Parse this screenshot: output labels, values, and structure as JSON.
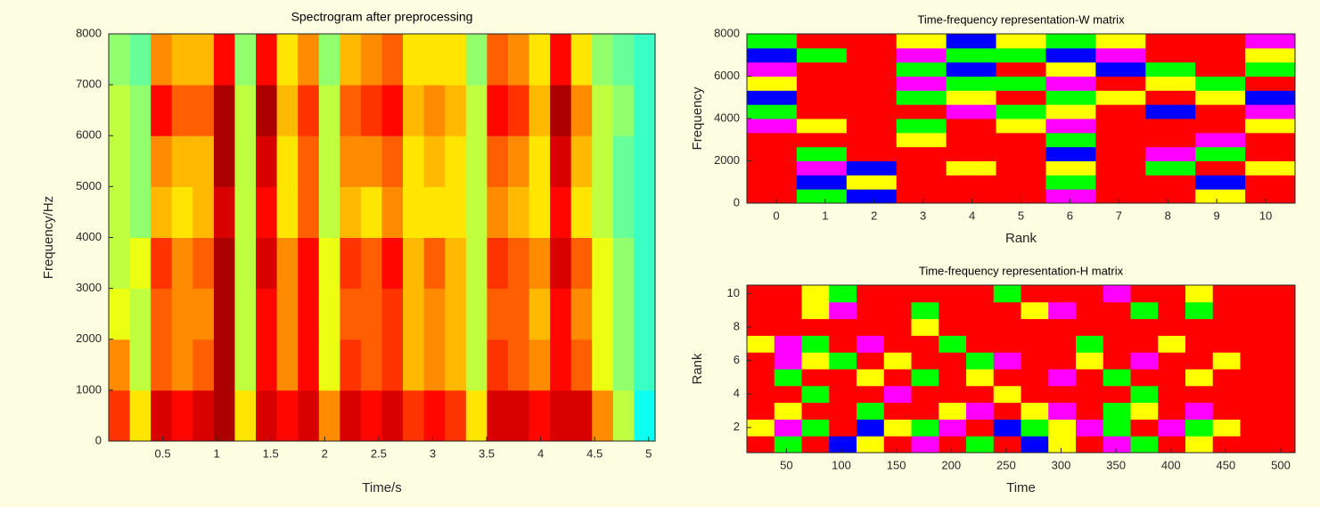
{
  "chart_data": [
    {
      "type": "heatmap",
      "title": "Spectrogram after preprocessing",
      "x_label": "Time/s",
      "y_label": "Frequency/Hz",
      "xlim": [
        0,
        5.06
      ],
      "ylim": [
        0,
        8000
      ],
      "xticks": [
        0.5,
        1,
        1.5,
        2,
        2.5,
        3,
        3.5,
        4,
        4.5,
        5
      ],
      "yticks": [
        0,
        1000,
        2000,
        3000,
        4000,
        5000,
        6000,
        7000,
        8000
      ],
      "colormap": [
        "#00007f",
        "#0000ff",
        "#00ffff",
        "#7fff7f",
        "#ffff00",
        "#ff7f00",
        "#ff0000",
        "#7f0000"
      ],
      "values": [
        [
          0.8,
          0.6,
          0.9,
          0.85,
          0.9,
          0.95,
          0.6,
          0.9,
          0.85,
          0.9,
          0.7,
          0.9,
          0.85,
          0.9,
          0.8,
          0.85,
          0.8,
          0.6,
          0.9,
          0.9,
          0.85,
          0.9,
          0.9,
          0.7,
          0.5,
          0.3
        ],
        [
          0.7,
          0.5,
          0.75,
          0.7,
          0.75,
          0.95,
          0.5,
          0.85,
          0.7,
          0.85,
          0.55,
          0.8,
          0.75,
          0.8,
          0.65,
          0.7,
          0.65,
          0.5,
          0.8,
          0.75,
          0.7,
          0.85,
          0.75,
          0.55,
          0.45,
          0.35
        ],
        [
          0.55,
          0.5,
          0.75,
          0.7,
          0.7,
          0.95,
          0.5,
          0.85,
          0.7,
          0.85,
          0.55,
          0.75,
          0.75,
          0.8,
          0.65,
          0.7,
          0.65,
          0.5,
          0.75,
          0.75,
          0.65,
          0.85,
          0.7,
          0.55,
          0.45,
          0.35
        ],
        [
          0.5,
          0.55,
          0.8,
          0.7,
          0.75,
          0.95,
          0.5,
          0.9,
          0.7,
          0.85,
          0.55,
          0.8,
          0.75,
          0.85,
          0.65,
          0.75,
          0.65,
          0.5,
          0.8,
          0.75,
          0.7,
          0.9,
          0.75,
          0.55,
          0.45,
          0.35
        ],
        [
          0.5,
          0.45,
          0.65,
          0.6,
          0.65,
          0.9,
          0.5,
          0.85,
          0.6,
          0.75,
          0.5,
          0.65,
          0.6,
          0.7,
          0.6,
          0.6,
          0.6,
          0.5,
          0.7,
          0.65,
          0.6,
          0.85,
          0.6,
          0.5,
          0.4,
          0.35
        ],
        [
          0.5,
          0.45,
          0.7,
          0.65,
          0.65,
          0.95,
          0.5,
          0.9,
          0.6,
          0.75,
          0.5,
          0.7,
          0.7,
          0.75,
          0.6,
          0.65,
          0.6,
          0.5,
          0.75,
          0.7,
          0.6,
          0.9,
          0.65,
          0.5,
          0.4,
          0.35
        ],
        [
          0.5,
          0.45,
          0.85,
          0.75,
          0.75,
          0.95,
          0.5,
          0.95,
          0.65,
          0.8,
          0.5,
          0.75,
          0.8,
          0.85,
          0.65,
          0.7,
          0.65,
          0.5,
          0.85,
          0.8,
          0.65,
          0.95,
          0.7,
          0.5,
          0.45,
          0.35
        ],
        [
          0.45,
          0.4,
          0.7,
          0.65,
          0.65,
          0.85,
          0.45,
          0.85,
          0.6,
          0.7,
          0.45,
          0.65,
          0.7,
          0.75,
          0.6,
          0.6,
          0.6,
          0.45,
          0.75,
          0.7,
          0.6,
          0.85,
          0.6,
          0.45,
          0.4,
          0.35
        ]
      ]
    },
    {
      "type": "heatmap",
      "title": "Time-frequency representation-W matrix",
      "x_label": "Rank",
      "y_label": "Frequency",
      "xlim": [
        -0.6,
        10.6
      ],
      "ylim": [
        0,
        8000
      ],
      "xticks": [
        0,
        1,
        2,
        3,
        4,
        5,
        6,
        7,
        8,
        9,
        10
      ],
      "yticks": [
        0,
        2000,
        4000,
        6000,
        8000
      ],
      "colormap": [
        "#0000ff",
        "#ff00ff",
        "#00ff00",
        "#ffff00",
        "#ff0000"
      ],
      "values": [
        [
          1,
          0.5,
          0,
          1,
          1,
          1,
          0.25,
          1,
          1,
          0.75,
          1
        ],
        [
          1,
          0,
          0.75,
          1,
          1,
          1,
          0.5,
          1,
          1,
          0,
          1
        ],
        [
          1,
          0.25,
          0,
          1,
          0.75,
          1,
          0.75,
          1,
          0.5,
          1,
          0.75
        ],
        [
          1,
          0.5,
          1,
          1,
          1,
          1,
          0,
          1,
          0.25,
          0.5,
          1
        ],
        [
          1,
          1,
          1,
          0.75,
          1,
          1,
          0.5,
          1,
          1,
          0.25,
          1
        ],
        [
          0.25,
          0.75,
          1,
          0.5,
          1,
          0.75,
          0.25,
          1,
          1,
          1,
          0.75
        ],
        [
          0.5,
          1,
          1,
          1,
          0.25,
          0.5,
          0.75,
          1,
          0,
          1,
          0.25
        ],
        [
          0,
          1,
          1,
          0.5,
          0.75,
          1,
          0.5,
          0.75,
          1,
          0.75,
          0
        ],
        [
          0.75,
          1,
          1,
          0.25,
          0.5,
          0.5,
          0.25,
          1,
          0.75,
          0.5,
          1
        ],
        [
          0.25,
          1,
          1,
          0.5,
          0,
          1,
          0.75,
          0,
          0.5,
          1,
          0.5
        ],
        [
          0,
          0.5,
          1,
          0.25,
          0.5,
          0.5,
          0,
          0.25,
          1,
          1,
          0.75
        ],
        [
          0.5,
          1,
          1,
          0.75,
          0,
          0.75,
          0.5,
          0.75,
          1,
          1,
          0.25
        ]
      ]
    },
    {
      "type": "heatmap",
      "title": "Time-frequency representation-H matrix",
      "x_label": "Time",
      "y_label": "Rank",
      "xlim": [
        14,
        513
      ],
      "ylim": [
        0.5,
        10.5
      ],
      "xticks": [
        50,
        100,
        150,
        200,
        250,
        300,
        350,
        400,
        450,
        500
      ],
      "yticks": [
        2,
        4,
        6,
        8,
        10
      ],
      "colormap": [
        "#0000ff",
        "#ff00ff",
        "#00ff00",
        "#ffff00",
        "#ff0000"
      ],
      "values": [
        [
          1,
          0.5,
          1,
          0,
          0.75,
          1,
          0.25,
          1,
          0.5,
          1,
          0,
          0.75,
          1,
          0.25,
          0.5,
          1,
          0.75,
          1,
          1,
          1
        ],
        [
          0.75,
          0.25,
          0.5,
          1,
          0,
          0.75,
          0.5,
          0.25,
          1,
          0,
          0.5,
          0.75,
          0.25,
          0.5,
          1,
          0.25,
          0.5,
          0.75,
          1,
          1
        ],
        [
          1,
          0.75,
          1,
          1,
          0.5,
          1,
          1,
          0.75,
          0.25,
          1,
          0.75,
          0.25,
          1,
          0.5,
          0.75,
          1,
          0.25,
          1,
          1,
          1
        ],
        [
          1,
          1,
          0.5,
          1,
          1,
          0.25,
          1,
          1,
          1,
          0.75,
          1,
          1,
          1,
          1,
          0.5,
          1,
          1,
          1,
          1,
          1
        ],
        [
          1,
          0.5,
          1,
          1,
          0.75,
          1,
          0.5,
          1,
          0.75,
          1,
          1,
          0.25,
          1,
          0.5,
          1,
          1,
          0.75,
          1,
          1,
          1
        ],
        [
          1,
          0.25,
          0.75,
          0.5,
          1,
          0.75,
          1,
          1,
          0.5,
          0.25,
          1,
          1,
          0.75,
          1,
          0.25,
          1,
          1,
          0.75,
          1,
          1
        ],
        [
          0.75,
          0.25,
          0.5,
          1,
          0.25,
          1,
          1,
          0.5,
          1,
          1,
          1,
          1,
          0.5,
          1,
          1,
          0.75,
          1,
          1,
          1,
          1
        ],
        [
          1,
          1,
          1,
          1,
          1,
          1,
          0.75,
          1,
          1,
          1,
          1,
          1,
          1,
          1,
          1,
          1,
          1,
          1,
          1,
          1
        ],
        [
          1,
          1,
          0.75,
          0.25,
          1,
          1,
          0.5,
          1,
          1,
          1,
          0.75,
          0.25,
          1,
          1,
          0.5,
          1,
          0.5,
          1,
          1,
          1
        ],
        [
          1,
          1,
          0.75,
          0.5,
          1,
          1,
          1,
          1,
          1,
          0.5,
          1,
          1,
          1,
          0.25,
          1,
          1,
          0.75,
          1,
          1,
          1
        ]
      ]
    }
  ]
}
